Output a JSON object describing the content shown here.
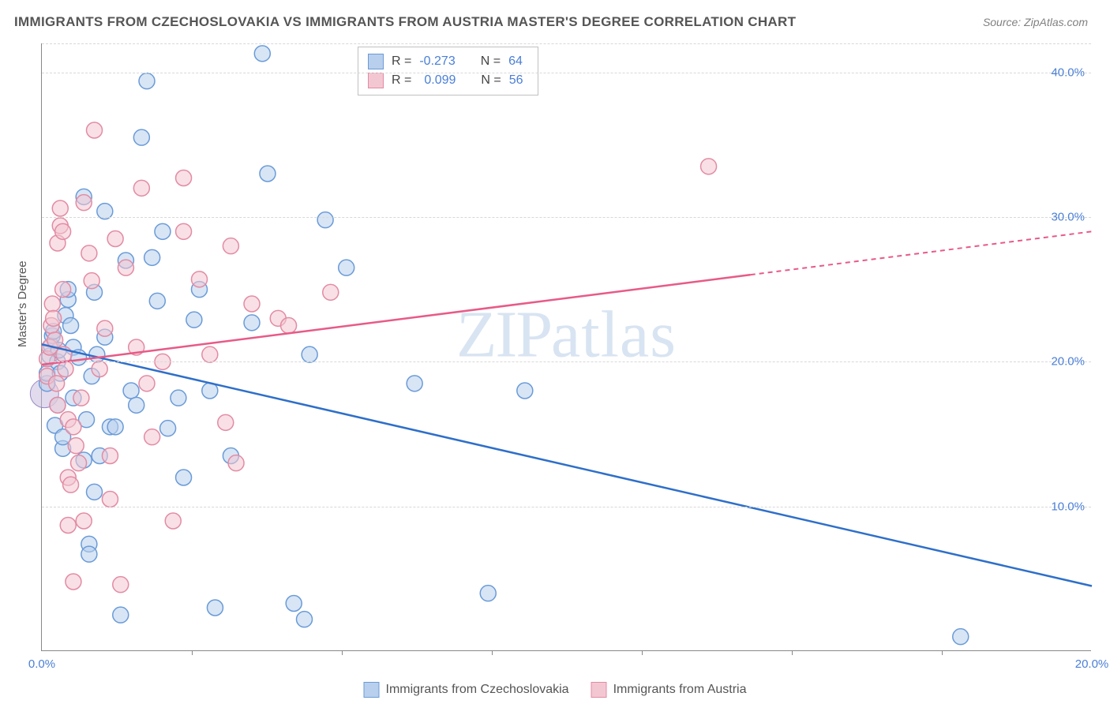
{
  "title": "IMMIGRANTS FROM CZECHOSLOVAKIA VS IMMIGRANTS FROM AUSTRIA MASTER'S DEGREE CORRELATION CHART",
  "source": "Source: ZipAtlas.com",
  "ylabel": "Master's Degree",
  "watermark": "ZIPatlas",
  "chart": {
    "type": "scatter",
    "xlim": [
      0,
      20
    ],
    "ylim": [
      0,
      42
    ],
    "xtick_labels": [
      "0.0%",
      "20.0%"
    ],
    "xtick_positions": [
      0,
      20
    ],
    "xtick_minor": [
      2.86,
      5.71,
      8.57,
      11.43,
      14.29,
      17.14
    ],
    "ytick_labels": [
      "10.0%",
      "20.0%",
      "30.0%",
      "40.0%"
    ],
    "ytick_positions": [
      10,
      20,
      30,
      40
    ],
    "background_color": "#ffffff",
    "grid_color": "#d8d8d8",
    "axis_color": "#888888",
    "label_color": "#4a7fd6",
    "series": [
      {
        "name": "Immigrants from Czechoslovakia",
        "color_fill": "#b8cfed",
        "color_stroke": "#6a9bd8",
        "line_color": "#2e6fc9",
        "marker_radius": 10,
        "fill_opacity": 0.55,
        "R": "-0.273",
        "N": "64",
        "trend": {
          "x1": 0,
          "y1": 21.2,
          "x2": 20,
          "y2": 4.5,
          "dash_from_x": 20
        },
        "points": [
          [
            0.1,
            18.5
          ],
          [
            0.1,
            19.2
          ],
          [
            0.15,
            20.4
          ],
          [
            0.18,
            21.1
          ],
          [
            0.2,
            21.8
          ],
          [
            0.22,
            22.1
          ],
          [
            0.25,
            15.6
          ],
          [
            0.3,
            17.0
          ],
          [
            0.3,
            20.0
          ],
          [
            0.32,
            20.8
          ],
          [
            0.35,
            19.2
          ],
          [
            0.4,
            14.0
          ],
          [
            0.4,
            14.8
          ],
          [
            0.45,
            23.2
          ],
          [
            0.5,
            24.3
          ],
          [
            0.5,
            25.0
          ],
          [
            0.55,
            22.5
          ],
          [
            0.6,
            17.5
          ],
          [
            0.6,
            21.0
          ],
          [
            0.7,
            20.3
          ],
          [
            0.8,
            13.2
          ],
          [
            0.8,
            31.4
          ],
          [
            0.85,
            16.0
          ],
          [
            0.9,
            7.4
          ],
          [
            0.9,
            6.7
          ],
          [
            0.95,
            19.0
          ],
          [
            1.0,
            11.0
          ],
          [
            1.0,
            24.8
          ],
          [
            1.05,
            20.5
          ],
          [
            1.1,
            13.5
          ],
          [
            1.2,
            30.4
          ],
          [
            1.2,
            21.7
          ],
          [
            1.3,
            15.5
          ],
          [
            1.4,
            15.5
          ],
          [
            1.5,
            2.5
          ],
          [
            1.6,
            27.0
          ],
          [
            1.7,
            18.0
          ],
          [
            1.8,
            17.0
          ],
          [
            1.9,
            35.5
          ],
          [
            2.0,
            39.4
          ],
          [
            2.1,
            27.2
          ],
          [
            2.2,
            24.2
          ],
          [
            2.3,
            29.0
          ],
          [
            2.4,
            15.4
          ],
          [
            2.6,
            17.5
          ],
          [
            2.7,
            12.0
          ],
          [
            2.9,
            22.9
          ],
          [
            3.0,
            25.0
          ],
          [
            3.2,
            18.0
          ],
          [
            3.3,
            3.0
          ],
          [
            3.6,
            13.5
          ],
          [
            4.0,
            22.7
          ],
          [
            4.2,
            41.3
          ],
          [
            4.3,
            33.0
          ],
          [
            4.8,
            3.3
          ],
          [
            5.0,
            2.2
          ],
          [
            5.1,
            20.5
          ],
          [
            5.4,
            29.8
          ],
          [
            5.8,
            26.5
          ],
          [
            7.1,
            18.5
          ],
          [
            8.5,
            4.0
          ],
          [
            9.2,
            18.0
          ],
          [
            17.5,
            1.0
          ]
        ]
      },
      {
        "name": "Immigrants from Austria",
        "color_fill": "#f3c7d2",
        "color_stroke": "#e38ba3",
        "line_color": "#e85a87",
        "marker_radius": 10,
        "fill_opacity": 0.55,
        "R": "0.099",
        "N": "56",
        "trend": {
          "x1": 0,
          "y1": 19.8,
          "x2": 20,
          "y2": 29.0,
          "dash_from_x": 13.5
        },
        "points": [
          [
            0.1,
            19.0
          ],
          [
            0.1,
            20.2
          ],
          [
            0.15,
            21.0
          ],
          [
            0.18,
            22.5
          ],
          [
            0.2,
            24.0
          ],
          [
            0.22,
            23.0
          ],
          [
            0.25,
            21.5
          ],
          [
            0.28,
            18.5
          ],
          [
            0.3,
            17.0
          ],
          [
            0.3,
            28.2
          ],
          [
            0.35,
            29.4
          ],
          [
            0.35,
            30.6
          ],
          [
            0.4,
            29.0
          ],
          [
            0.4,
            25.0
          ],
          [
            0.42,
            20.5
          ],
          [
            0.45,
            19.5
          ],
          [
            0.5,
            16.0
          ],
          [
            0.5,
            12.0
          ],
          [
            0.5,
            8.7
          ],
          [
            0.55,
            11.5
          ],
          [
            0.6,
            4.8
          ],
          [
            0.6,
            15.5
          ],
          [
            0.65,
            14.2
          ],
          [
            0.7,
            13.0
          ],
          [
            0.75,
            17.5
          ],
          [
            0.8,
            9.0
          ],
          [
            0.8,
            31.0
          ],
          [
            0.9,
            27.5
          ],
          [
            0.95,
            25.6
          ],
          [
            1.0,
            36.0
          ],
          [
            1.1,
            19.5
          ],
          [
            1.2,
            22.3
          ],
          [
            1.3,
            13.5
          ],
          [
            1.3,
            10.5
          ],
          [
            1.4,
            28.5
          ],
          [
            1.5,
            4.6
          ],
          [
            1.6,
            26.5
          ],
          [
            1.8,
            21.0
          ],
          [
            1.9,
            32.0
          ],
          [
            2.0,
            18.5
          ],
          [
            2.1,
            14.8
          ],
          [
            2.3,
            20.0
          ],
          [
            2.5,
            9.0
          ],
          [
            2.7,
            29.0
          ],
          [
            2.7,
            32.7
          ],
          [
            3.0,
            25.7
          ],
          [
            3.2,
            20.5
          ],
          [
            3.5,
            15.8
          ],
          [
            3.6,
            28.0
          ],
          [
            3.7,
            13.0
          ],
          [
            4.0,
            24.0
          ],
          [
            4.5,
            23.0
          ],
          [
            4.7,
            22.5
          ],
          [
            5.5,
            24.8
          ],
          [
            12.7,
            33.5
          ]
        ]
      }
    ]
  },
  "legend_top": {
    "label_R": "R =",
    "label_N": "N ="
  },
  "legend_bottom": {
    "items": [
      "Immigrants from Czechoslovakia",
      "Immigrants from Austria"
    ]
  }
}
